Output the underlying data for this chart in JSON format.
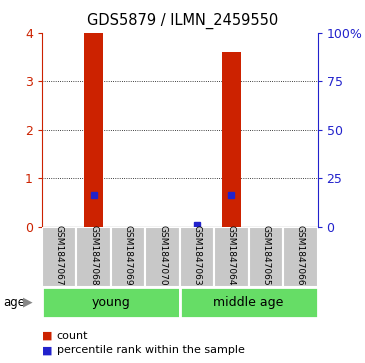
{
  "title": "GDS5879 / ILMN_2459550",
  "samples": [
    "GSM1847067",
    "GSM1847068",
    "GSM1847069",
    "GSM1847070",
    "GSM1847063",
    "GSM1847064",
    "GSM1847065",
    "GSM1847066"
  ],
  "count_values": [
    0,
    4.0,
    0,
    0,
    0,
    3.6,
    0,
    0
  ],
  "percentile_values_left": [
    null,
    0.65,
    null,
    null,
    0.04,
    0.65,
    null,
    null
  ],
  "ylim_left": [
    0,
    4
  ],
  "ylim_right": [
    0,
    100
  ],
  "yticks_left": [
    0,
    1,
    2,
    3,
    4
  ],
  "yticks_right": [
    0,
    25,
    50,
    75,
    100
  ],
  "ytick_labels_right": [
    "0",
    "25",
    "50",
    "75",
    "100%"
  ],
  "bar_color": "#CC2200",
  "dot_color": "#2222CC",
  "bg_color": "#ffffff",
  "bar_width": 0.55,
  "label_count": "count",
  "label_percentile": "percentile rank within the sample",
  "age_label": "age",
  "group_label_young": "young",
  "group_label_middle": "middle age",
  "gray_box_color": "#C8C8C8",
  "green_color": "#66DD66"
}
